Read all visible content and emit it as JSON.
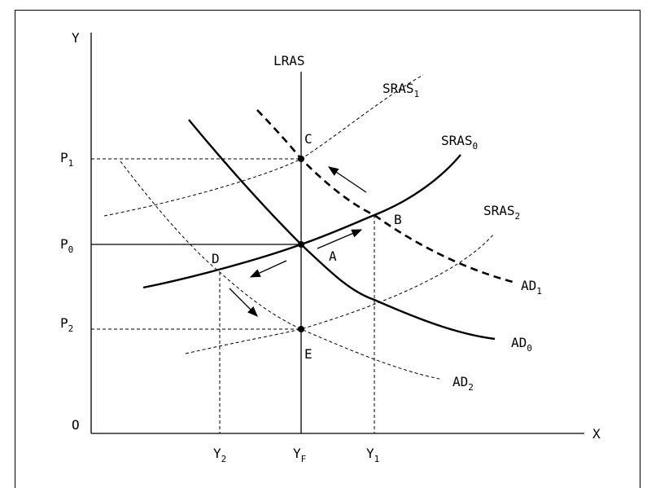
{
  "axes": {
    "y": "Y",
    "x": "X",
    "origin": "O"
  },
  "curves": {
    "lras": "LRAS",
    "sras0": {
      "base": "SRAS",
      "sub": "0"
    },
    "sras1": {
      "base": "SRAS",
      "sub": "1"
    },
    "sras2": {
      "base": "SRAS",
      "sub": "2"
    },
    "ad0": {
      "base": "AD",
      "sub": "0"
    },
    "ad1": {
      "base": "AD",
      "sub": "1"
    },
    "ad2": {
      "base": "AD",
      "sub": "2"
    }
  },
  "price_levels": {
    "p1": {
      "base": "P",
      "sub": "1"
    },
    "p0": {
      "base": "P",
      "sub": "0"
    },
    "p2": {
      "base": "P",
      "sub": "2"
    }
  },
  "output_levels": {
    "y2": {
      "base": "Y",
      "sub": "2"
    },
    "yf": {
      "base": "Y",
      "sub": "F"
    },
    "y1": {
      "base": "Y",
      "sub": "1"
    }
  },
  "points": {
    "a": "A",
    "b": "B",
    "c": "C",
    "d": "D",
    "e": "E"
  }
}
